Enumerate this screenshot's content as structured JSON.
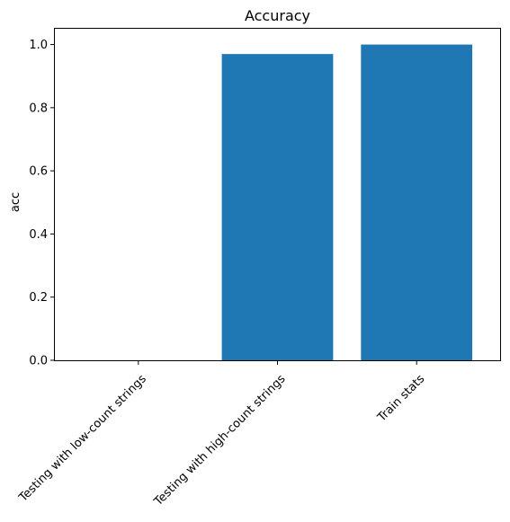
{
  "chart_data": {
    "type": "bar",
    "title": "Accuracy",
    "xlabel": "",
    "ylabel": "acc",
    "categories": [
      "Testing with low-count strings",
      "Testing with high-count strings",
      "Train stats"
    ],
    "values": [
      0.0,
      0.97,
      1.0
    ],
    "ylim": [
      0,
      1.05
    ],
    "yticks": [
      0.0,
      0.2,
      0.4,
      0.6,
      0.8,
      1.0
    ],
    "ytick_labels": [
      "0.0",
      "0.2",
      "0.4",
      "0.6",
      "0.8",
      "1.0"
    ],
    "bar_color": "#1f77b4",
    "grid": false,
    "legend": "none"
  }
}
